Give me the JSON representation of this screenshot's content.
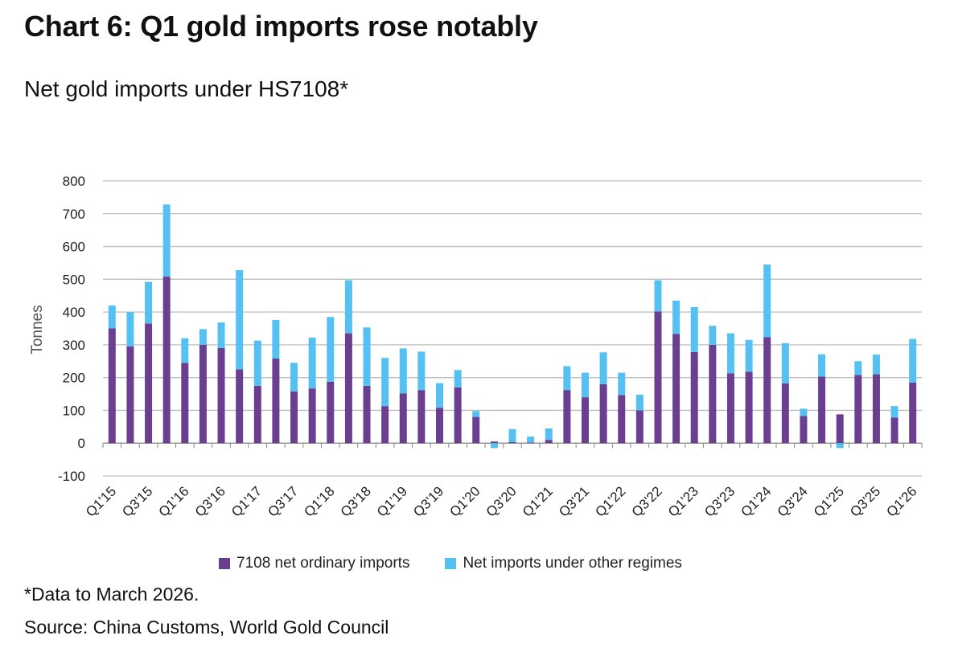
{
  "title": "Chart 6: Q1 gold imports rose notably",
  "subtitle": "Net gold imports under HS7108*",
  "footnote": "*Data to March 2026.",
  "source": "Source: China Customs, World Gold Council",
  "chart_data": {
    "type": "bar",
    "stacked": true,
    "title": "",
    "xlabel": "",
    "ylabel": "Tonnes",
    "ylim": [
      -100,
      800
    ],
    "yticks": [
      -100,
      0,
      100,
      200,
      300,
      400,
      500,
      600,
      700,
      800
    ],
    "grid": true,
    "legend_position": "bottom",
    "categories": [
      "Q1'15",
      "Q2'15",
      "Q3'15",
      "Q4'15",
      "Q1'16",
      "Q2'16",
      "Q3'16",
      "Q4'16",
      "Q1'17",
      "Q2'17",
      "Q3'17",
      "Q4'17",
      "Q1'18",
      "Q2'18",
      "Q3'18",
      "Q4'18",
      "Q1'19",
      "Q2'19",
      "Q3'19",
      "Q4'19",
      "Q1'20",
      "Q2'20",
      "Q3'20",
      "Q4'20",
      "Q1'21",
      "Q2'21",
      "Q3'21",
      "Q4'21",
      "Q1'22",
      "Q2'22",
      "Q3'22",
      "Q4'22",
      "Q1'23",
      "Q2'23",
      "Q3'23",
      "Q4'23",
      "Q1'24",
      "Q2'24",
      "Q3'24",
      "Q4'24",
      "Q1'25",
      "Q2'25",
      "Q3'25",
      "Q4'25",
      "Q1'26"
    ],
    "tick_labels": [
      "Q1'15",
      "Q3'15",
      "Q1'16",
      "Q3'16",
      "Q1'17",
      "Q3'17",
      "Q1'18",
      "Q3'18",
      "Q1'19",
      "Q3'19",
      "Q1'20",
      "Q3'20",
      "Q1'21",
      "Q3'21",
      "Q1'22",
      "Q3'22",
      "Q1'23",
      "Q3'23",
      "Q1'24",
      "Q3'24",
      "Q1'25",
      "Q3'25",
      "Q1'26"
    ],
    "series": [
      {
        "name": "7108 net ordinary imports",
        "color": "#6b3f8f",
        "values": [
          350,
          295,
          365,
          508,
          245,
          300,
          290,
          225,
          175,
          258,
          158,
          167,
          187,
          335,
          175,
          113,
          152,
          162,
          108,
          170,
          80,
          5,
          3,
          2,
          10,
          162,
          140,
          180,
          147,
          100,
          402,
          333,
          278,
          300,
          213,
          218,
          323,
          182,
          83,
          203,
          88,
          208,
          210,
          78,
          185
        ]
      },
      {
        "name": "Net imports under other regimes",
        "color": "#55c1f2",
        "values": [
          70,
          105,
          127,
          220,
          75,
          48,
          78,
          303,
          138,
          118,
          87,
          155,
          198,
          162,
          178,
          147,
          137,
          117,
          75,
          53,
          18,
          -15,
          40,
          18,
          35,
          73,
          75,
          97,
          68,
          48,
          95,
          102,
          137,
          58,
          122,
          97,
          222,
          123,
          22,
          68,
          -15,
          42,
          60,
          35,
          133
        ]
      }
    ]
  }
}
